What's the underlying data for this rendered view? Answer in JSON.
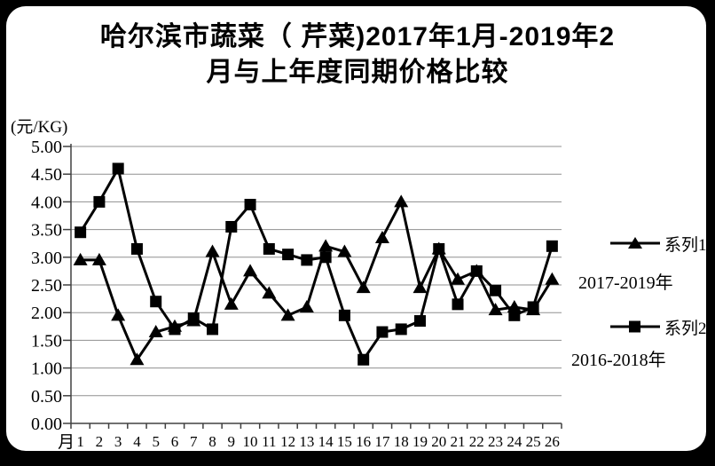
{
  "window": {
    "background": "#000000",
    "panel_background": "#ffffff"
  },
  "title": {
    "line1": "哈尔滨市蔬菜（ 芹菜)2017年1月-2019年2",
    "line2": "月与上年度同期价格比较"
  },
  "y_axis": {
    "unit_label": "(元/KG)",
    "ticks": [
      "5.00",
      "4.50",
      "4.00",
      "3.50",
      "3.00",
      "2.50",
      "2.00",
      "1.50",
      "1.00",
      "0.50",
      "0.00"
    ]
  },
  "x_axis": {
    "prefix": "月",
    "labels": [
      "1",
      "2",
      "3",
      "4",
      "5",
      "6",
      "7",
      "8",
      "9",
      "10",
      "11",
      "12",
      "13",
      "14",
      "15",
      "16",
      "17",
      "18",
      "19",
      "20",
      "21",
      "22",
      "23",
      "24",
      "25",
      "26"
    ]
  },
  "legend": {
    "series1": {
      "label": "系列1",
      "sublabel": "2017-2019年",
      "marker": "triangle"
    },
    "series2": {
      "label": "系列2",
      "sublabel": "2016-2018年",
      "marker": "square"
    }
  },
  "colors": {
    "series": "#000000",
    "gridline": "#909090",
    "axis": "#404040",
    "text": "#000000"
  },
  "chart_data": {
    "type": "line",
    "title": "哈尔滨市蔬菜（ 芹菜)2017年1月-2019年2月与上年度同期价格比较",
    "xlabel": "月",
    "ylabel": "(元/KG)",
    "ylim": [
      0,
      5
    ],
    "ytick_step": 0.5,
    "grid": true,
    "legend_position": "right",
    "categories": [
      1,
      2,
      3,
      4,
      5,
      6,
      7,
      8,
      9,
      10,
      11,
      12,
      13,
      14,
      15,
      16,
      17,
      18,
      19,
      20,
      21,
      22,
      23,
      24,
      25,
      26
    ],
    "series": [
      {
        "name": "系列1",
        "period": "2017-2019年",
        "marker": "triangle",
        "color": "#000000",
        "values": [
          2.95,
          2.95,
          1.95,
          1.15,
          1.65,
          1.75,
          1.85,
          3.1,
          2.15,
          2.75,
          2.35,
          1.95,
          2.1,
          3.2,
          3.1,
          2.45,
          3.35,
          4.0,
          2.45,
          3.15,
          2.6,
          2.75,
          2.05,
          2.1,
          2.05,
          2.6
        ]
      },
      {
        "name": "系列2",
        "period": "2016-2018年",
        "marker": "square",
        "color": "#000000",
        "values": [
          3.45,
          4.0,
          4.6,
          3.15,
          2.2,
          1.7,
          1.9,
          1.7,
          3.55,
          3.95,
          3.15,
          3.05,
          2.95,
          3.0,
          1.95,
          1.15,
          1.65,
          1.7,
          1.85,
          3.15,
          2.15,
          2.75,
          2.4,
          1.95,
          2.1,
          3.2
        ]
      }
    ]
  }
}
